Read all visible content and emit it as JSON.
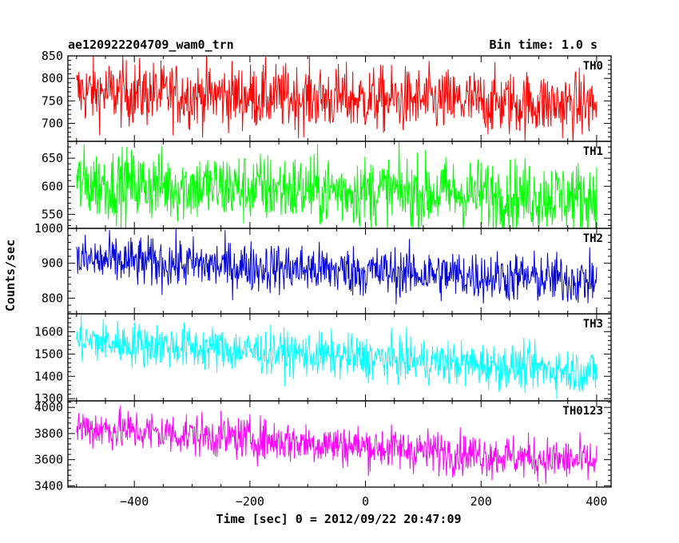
{
  "header": {
    "title": "ae120922204709_wam0_trn",
    "bin_time": "Bin time: 1.0 s"
  },
  "chart_data": {
    "type": "line",
    "xlabel": "Time [sec] 0 = 2012/09/22 20:47:09",
    "ylabel": "Counts/sec",
    "xlim": [
      -515,
      425
    ],
    "x_range_data": [
      -500,
      400
    ],
    "x_ticks": [
      -400,
      -200,
      0,
      200,
      400
    ],
    "panels": [
      {
        "name": "TH0",
        "color": "#ff0000",
        "ylim": [
          660,
          850
        ],
        "y_ticks": [
          700,
          750,
          800,
          850
        ],
        "trend_start": 770,
        "trend_end": 740,
        "noise_amp": 40
      },
      {
        "name": "TH1",
        "color": "#00ff00",
        "ylim": [
          525,
          680
        ],
        "y_ticks": [
          550,
          600,
          650
        ],
        "trend_start": 605,
        "trend_end": 580,
        "noise_amp": 35
      },
      {
        "name": "TH2",
        "color": "#0000dd",
        "ylim": [
          755,
          1000
        ],
        "y_ticks": [
          800,
          900,
          1000
        ],
        "trend_start": 910,
        "trend_end": 850,
        "noise_amp": 40
      },
      {
        "name": "TH3",
        "color": "#00ffff",
        "ylim": [
          1290,
          1680
        ],
        "y_ticks": [
          1300,
          1400,
          1500,
          1600
        ],
        "trend_start": 1560,
        "trend_end": 1420,
        "noise_amp": 55
      },
      {
        "name": "TH0123",
        "color": "#ff00ff",
        "ylim": [
          3390,
          4050
        ],
        "y_ticks": [
          3400,
          3600,
          3800,
          4000
        ],
        "trend_start": 3850,
        "trend_end": 3580,
        "noise_amp": 90
      }
    ]
  }
}
